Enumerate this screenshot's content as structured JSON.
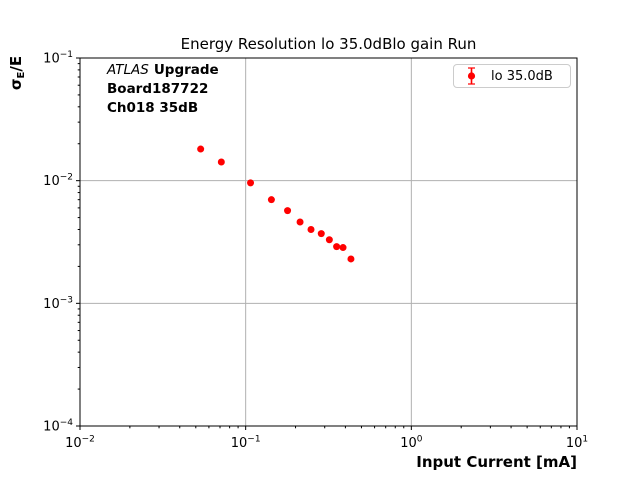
{
  "title_text": "Energy Resolution lo 35.0dBlo gain Run",
  "annotation": {
    "line1_italic": "ATLAS",
    "line1_bold": "Upgrade",
    "line2": "Board187722",
    "line3": "Ch018 35dB"
  },
  "legend": {
    "label": "lo 35.0dB",
    "marker_color": "#ff0000"
  },
  "colors": {
    "marker": "#ff0000",
    "grid": "#b0b0b0",
    "frame": "#000000",
    "legend_border": "#cccccc",
    "text": "#000000"
  },
  "chart_data": {
    "type": "scatter",
    "title": "Energy Resolution lo 35.0dBlo gain Run",
    "xlabel": "Input Current [mA]",
    "ylabel": "σE/E",
    "ylabel_parts": {
      "base": "σ",
      "subscript": "E",
      "suffix": "/E"
    },
    "x_scale": "log",
    "y_scale": "log",
    "xlim": [
      0.01,
      10
    ],
    "ylim": [
      0.0001,
      0.1
    ],
    "xtick_exponents": [
      -2,
      -1,
      0,
      1
    ],
    "ytick_exponents": [
      -1,
      -2,
      -3,
      -4
    ],
    "grid": true,
    "legend_position": "upper right",
    "series": [
      {
        "name": "lo 35.0dB",
        "color": "#ff0000",
        "marker": "circle",
        "x": [
          0.0535,
          0.0713,
          0.107,
          0.143,
          0.179,
          0.213,
          0.248,
          0.286,
          0.32,
          0.354,
          0.387,
          0.432
        ],
        "y": [
          0.0181,
          0.0142,
          0.0096,
          0.007,
          0.0057,
          0.0046,
          0.004,
          0.0037,
          0.0033,
          0.0029,
          0.00285,
          0.0023
        ],
        "yerr": [
          0.0004,
          0.0003,
          0.0002,
          0.00015,
          0.00012,
          0.0001,
          0.0001,
          9e-05,
          8e-05,
          7e-05,
          7e-05,
          6e-05
        ]
      }
    ]
  }
}
